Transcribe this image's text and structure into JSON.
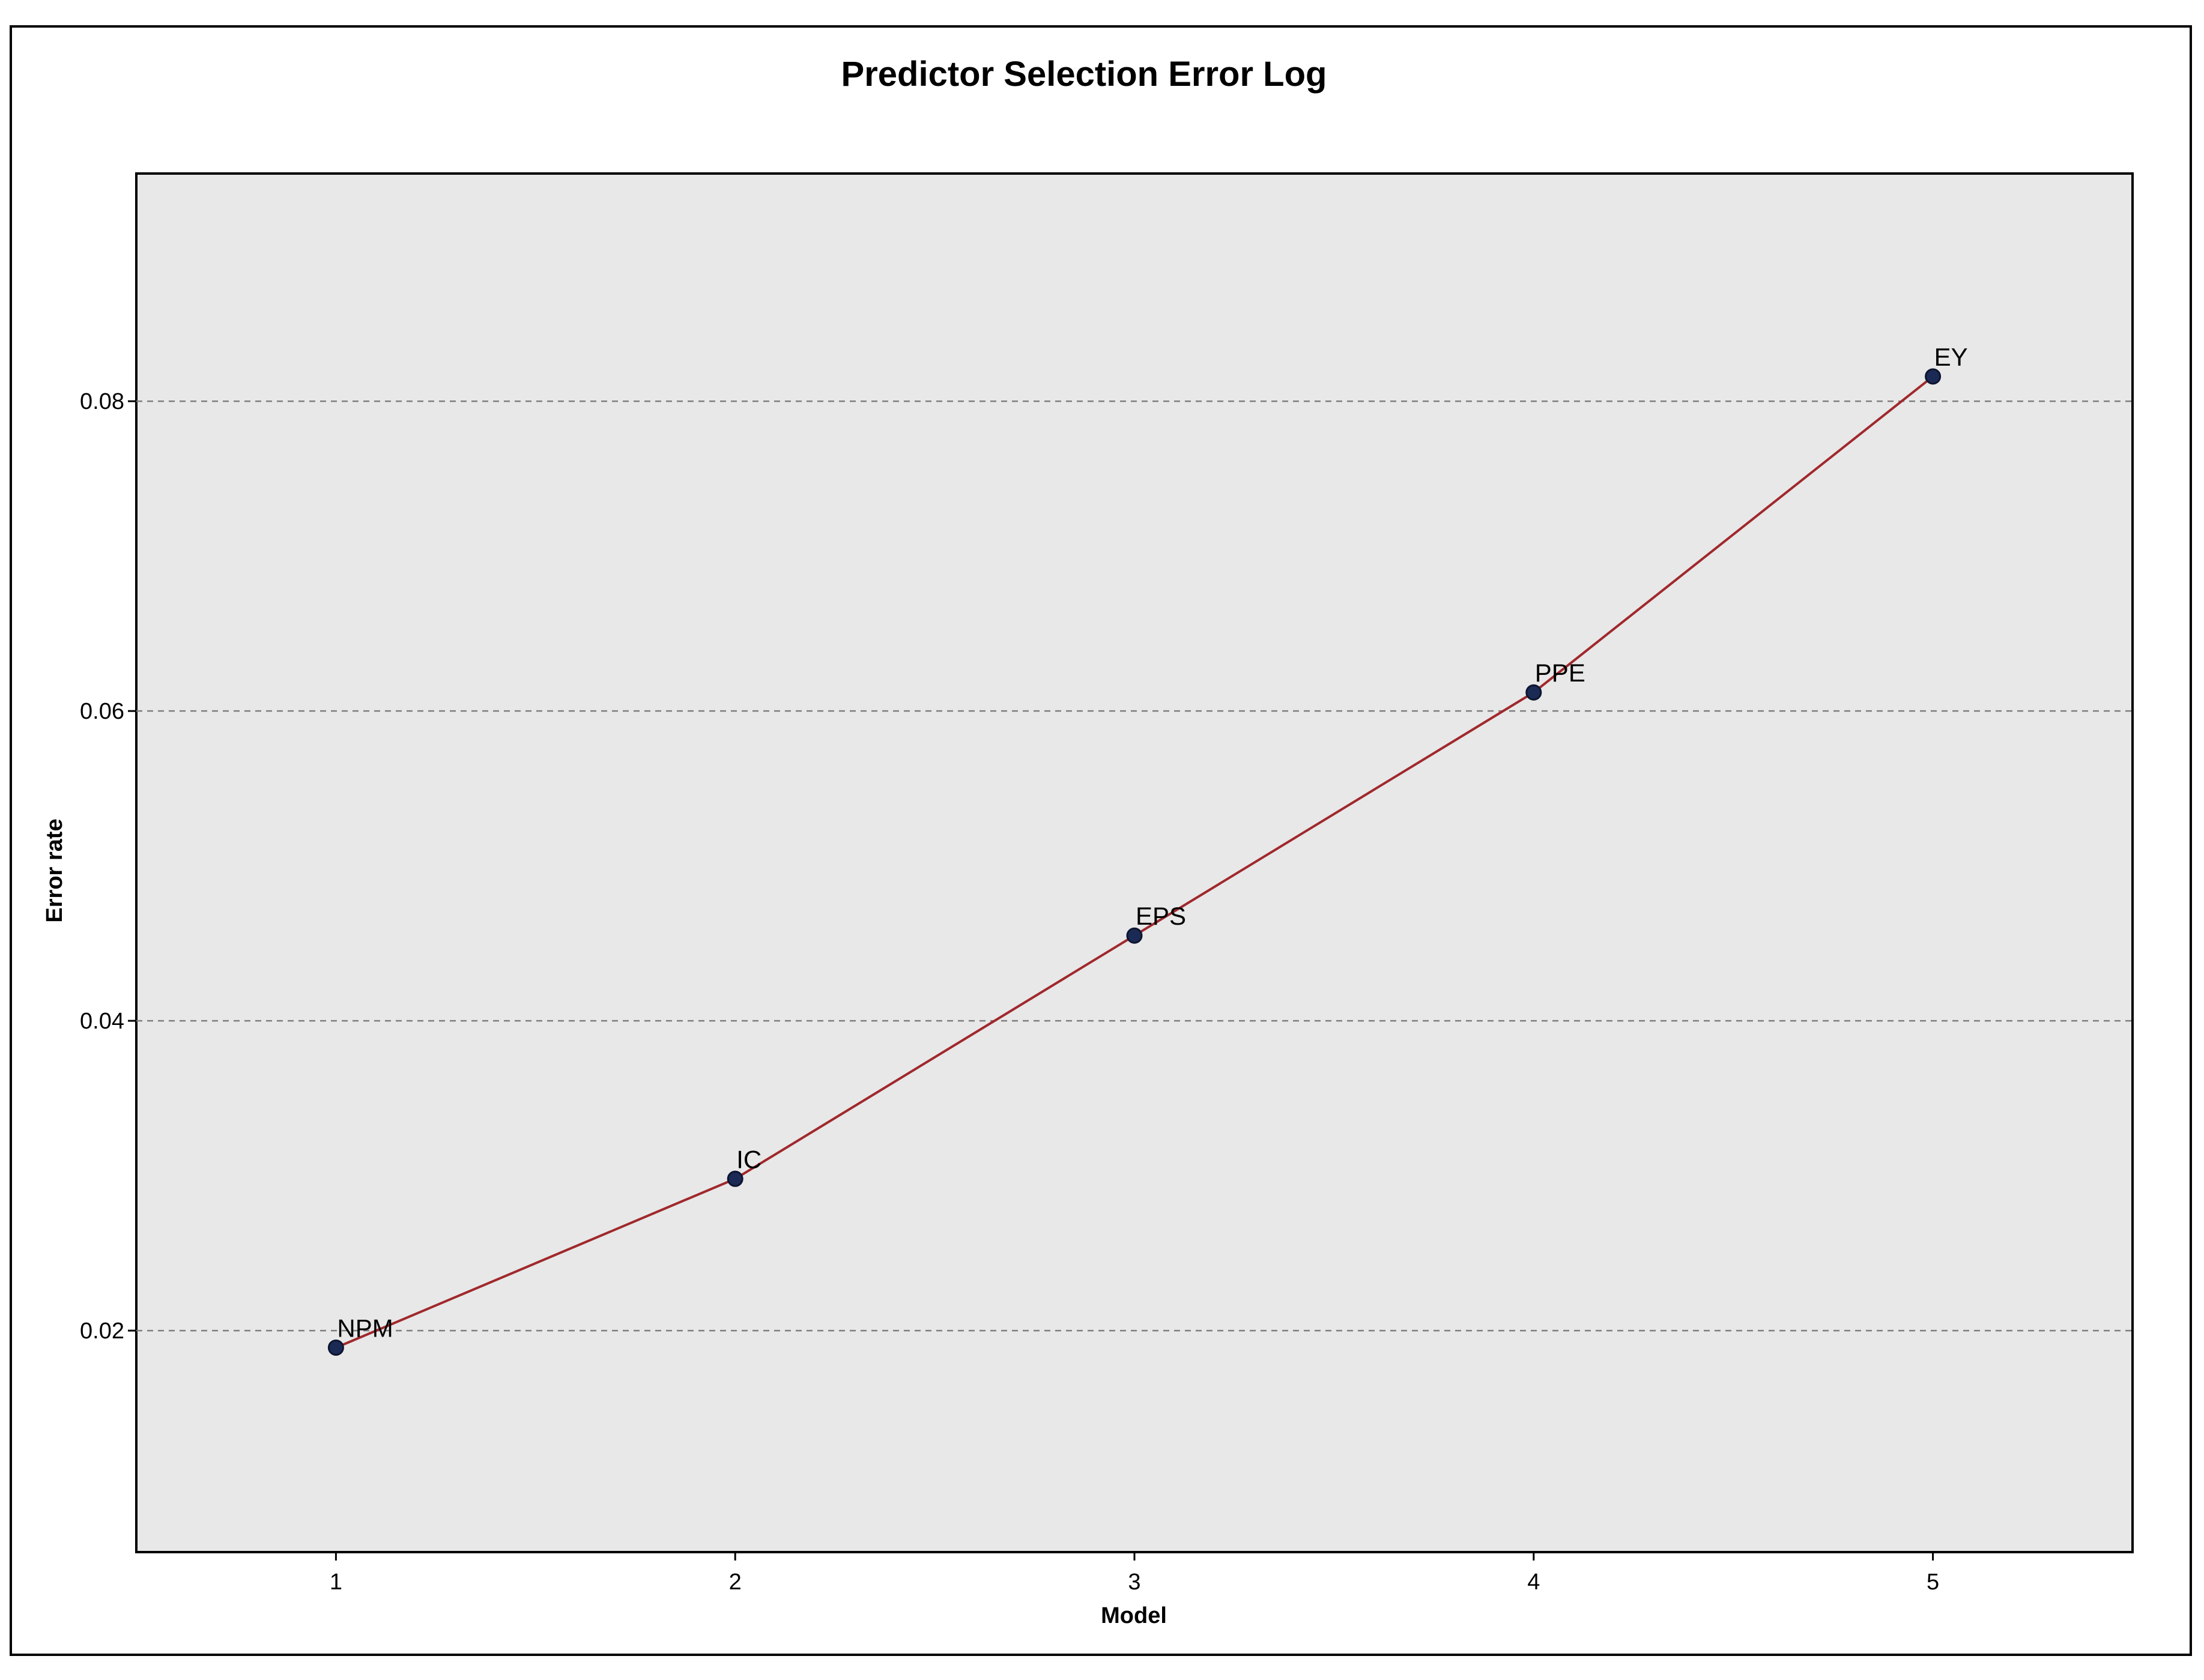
{
  "chart_data": {
    "type": "line",
    "title": "Predictor Selection Error Log",
    "xlabel": "Model",
    "ylabel": "Error rate",
    "x": [
      1,
      2,
      3,
      4,
      5
    ],
    "x_ticks": [
      "1",
      "2",
      "3",
      "4",
      "5"
    ],
    "xlim": [
      0.5,
      5.5
    ],
    "y_ticks": [
      "0.02",
      "0.04",
      "0.06",
      "0.08"
    ],
    "ylim": [
      0.0057,
      0.0947
    ],
    "grid": "horizontal dashed",
    "series": [
      {
        "values": [
          0.0189,
          0.0298,
          0.0455,
          0.0612,
          0.0816
        ],
        "point_labels": [
          "NPM",
          "IC",
          "EPS",
          "PPE",
          "EY"
        ]
      }
    ],
    "colors": {
      "line": "#a0282c",
      "marker": "#1b2a55",
      "plot_background": "#e8e8e8",
      "grid": "#7f7f7f"
    }
  }
}
